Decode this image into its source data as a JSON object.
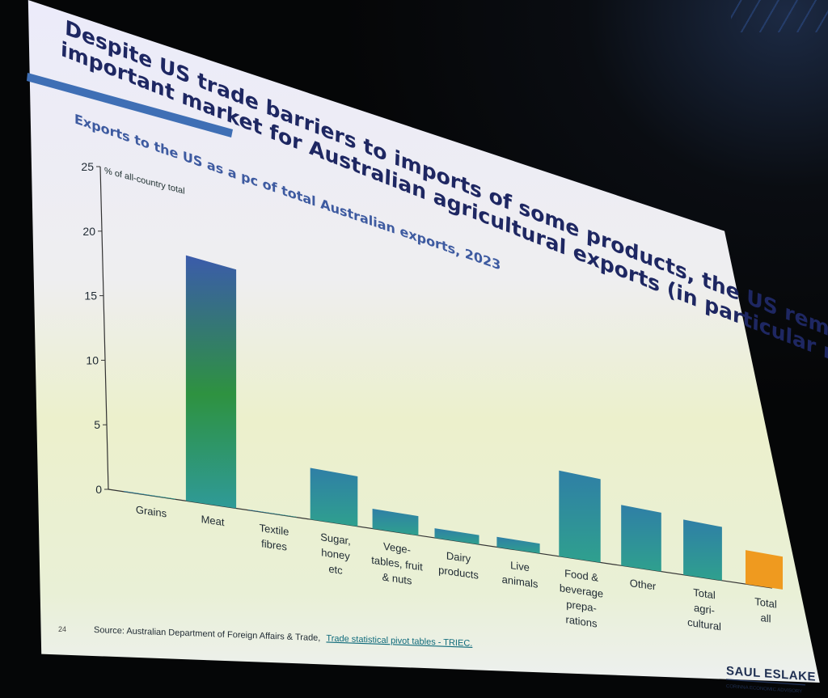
{
  "slide": {
    "title_line1": "Despite US trade barriers to imports of some products, the US remains an",
    "title_line2": "important market for Australian agricultural exports (in particular meat)",
    "page_number": "24",
    "source_text": "Source: Australian Department of Foreign Affairs & Trade,",
    "source_link": "Trade statistical pivot tables - TRIEC.",
    "brand": "SAUL ESLAKE",
    "brand_sub": "CORINNA ECONOMIC ADVISORY",
    "colors": {
      "title": "#1e2762",
      "subtitle": "#3d5aa0",
      "accent_bar": "#3f6fb5",
      "bar_top": "#3b5bab",
      "bar_mid": "#2e9240",
      "bar_bottom": "#2f9a98",
      "bar_teal": "#2f8aa0",
      "total_all": "#ef9a1f"
    }
  },
  "chart_data": {
    "type": "bar",
    "title": "Exports to the US as a pc of total Australian exports, 2023",
    "ylabel": "% of all-country total",
    "ylim": [
      0,
      25
    ],
    "yticks": [
      "0",
      "5",
      "10",
      "15",
      "20",
      "25"
    ],
    "categories": [
      [
        "Grains"
      ],
      [
        "Meat"
      ],
      [
        "Textile",
        "fibres"
      ],
      [
        "Sugar,",
        "honey",
        "etc"
      ],
      [
        "Vege-",
        "tables, fruit",
        "& nuts"
      ],
      [
        "Dairy",
        "products"
      ],
      [
        "Live",
        "animals"
      ],
      [
        "Food &",
        "beverage",
        "prepa-",
        "rations"
      ],
      [
        "Other"
      ],
      [
        "Total",
        "agri-",
        "cultural"
      ],
      [
        "Total",
        "all"
      ]
    ],
    "values": [
      0.05,
      20.0,
      0.05,
      4.5,
      1.8,
      0.9,
      1.0,
      8.8,
      6.5,
      6.2,
      4.0
    ],
    "highlight_index": 10
  }
}
